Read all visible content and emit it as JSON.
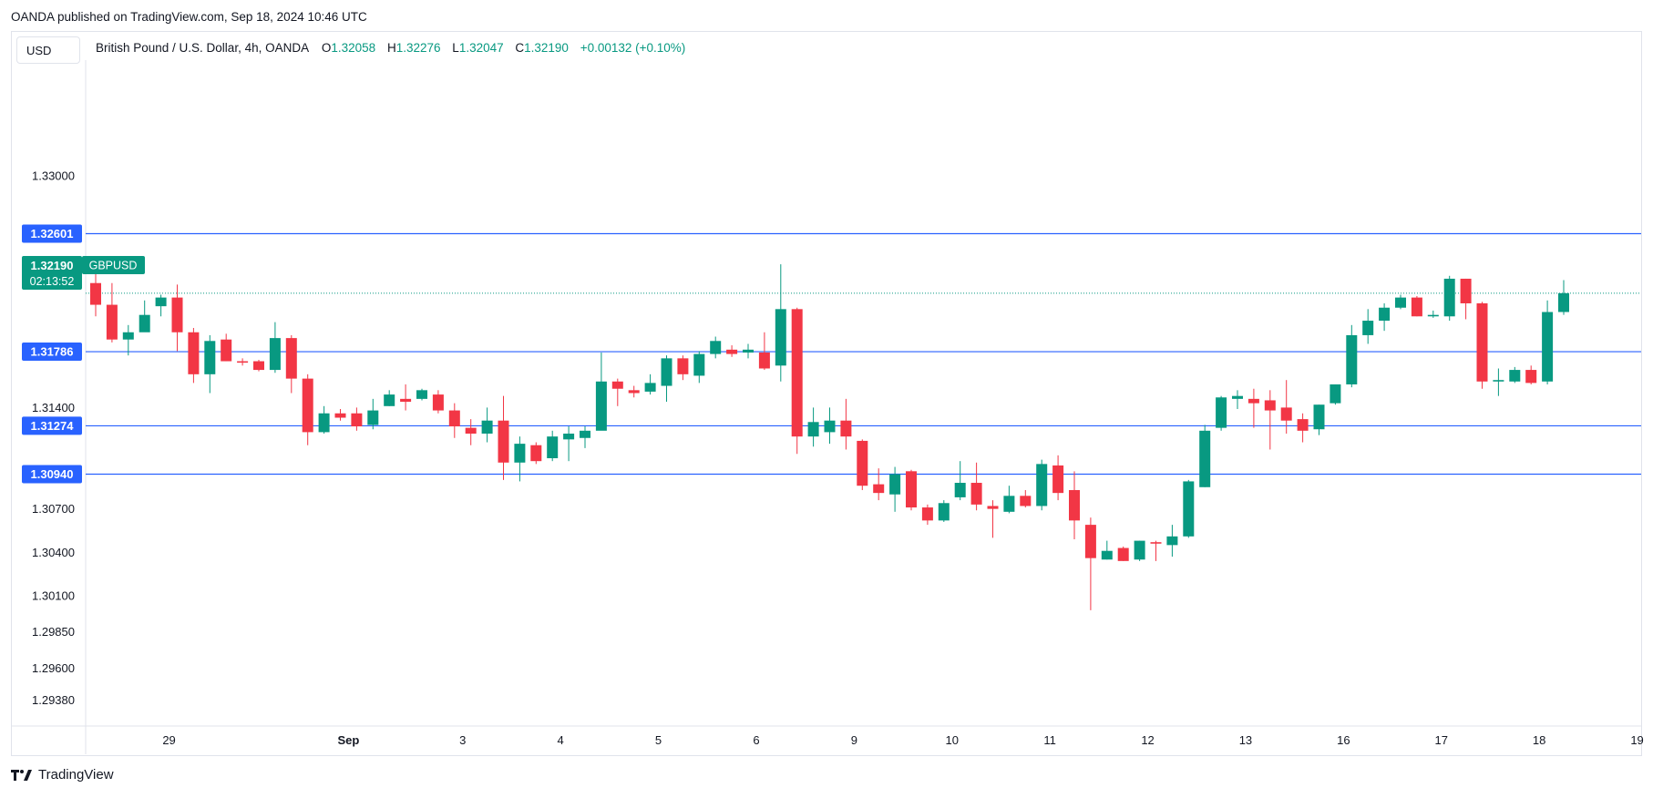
{
  "header": {
    "published": "OANDA published on TradingView.com, Sep 18, 2024 10:46 UTC"
  },
  "currency_button": "USD",
  "legend": {
    "symbol": "British Pound / U.S. Dollar, 4h, OANDA",
    "open_label": "O",
    "open": "1.32058",
    "high_label": "H",
    "high": "1.32276",
    "low_label": "L",
    "low": "1.32047",
    "close_label": "C",
    "close": "1.32190",
    "change": "+0.00132 (+0.10%)"
  },
  "price_tag": {
    "price": "1.32190",
    "countdown": "02:13:52",
    "symbol": "GBPUSD"
  },
  "footer": {
    "brand": "TradingView"
  },
  "colors": {
    "up": "#089981",
    "down": "#f23645",
    "level_line": "#2962ff",
    "axis_text": "#131722"
  },
  "chart_data": {
    "type": "candlestick",
    "symbol": "GBPUSD",
    "timeframe": "4h",
    "ylim": [
      1.292,
      1.338
    ],
    "y_ticks": [
      "1.33000",
      "1.31400",
      "1.30700",
      "1.30400",
      "1.30100",
      "1.29850",
      "1.29600",
      "1.29380"
    ],
    "x_ticks": [
      {
        "label": "29",
        "candle": 4.5
      },
      {
        "label": "Sep",
        "candle": 15.5,
        "bold": true
      },
      {
        "label": "3",
        "candle": 22.5
      },
      {
        "label": "4",
        "candle": 28.5
      },
      {
        "label": "5",
        "candle": 34.5
      },
      {
        "label": "6",
        "candle": 40.5
      },
      {
        "label": "9",
        "candle": 46.5
      },
      {
        "label": "10",
        "candle": 52.5
      },
      {
        "label": "11",
        "candle": 58.5
      },
      {
        "label": "12",
        "candle": 64.5
      },
      {
        "label": "13",
        "candle": 70.5
      },
      {
        "label": "16",
        "candle": 76.5
      },
      {
        "label": "17",
        "candle": 82.5
      },
      {
        "label": "18",
        "candle": 88.5
      },
      {
        "label": "19",
        "candle": 94.5
      }
    ],
    "horizontal_levels": [
      "1.32601",
      "1.31786",
      "1.31274",
      "1.30940"
    ],
    "last_price": 1.3219,
    "candles": [
      [
        1.3226,
        1.3211,
        1.3236,
        1.3203
      ],
      [
        1.3211,
        1.3187,
        1.3226,
        1.3185
      ],
      [
        1.3187,
        1.3192,
        1.3197,
        1.3176
      ],
      [
        1.3192,
        1.3204,
        1.3214,
        1.3195
      ],
      [
        1.321,
        1.3216,
        1.3218,
        1.3203
      ],
      [
        1.3216,
        1.3192,
        1.3225,
        1.3179
      ],
      [
        1.3192,
        1.3163,
        1.3195,
        1.3157
      ],
      [
        1.3163,
        1.3186,
        1.319,
        1.315
      ],
      [
        1.3187,
        1.3172,
        1.3191,
        1.3172
      ],
      [
        1.3172,
        1.3171,
        1.3174,
        1.3169
      ],
      [
        1.3172,
        1.3166,
        1.3173,
        1.3165
      ],
      [
        1.3166,
        1.3188,
        1.3199,
        1.3164
      ],
      [
        1.3188,
        1.316,
        1.319,
        1.315
      ],
      [
        1.316,
        1.3123,
        1.3163,
        1.3114
      ],
      [
        1.3123,
        1.3136,
        1.3141,
        1.3122
      ],
      [
        1.3136,
        1.3133,
        1.3139,
        1.3131
      ],
      [
        1.3136,
        1.3127,
        1.314,
        1.3124
      ],
      [
        1.3128,
        1.3138,
        1.3146,
        1.3125
      ],
      [
        1.3141,
        1.3149,
        1.3152,
        1.3141
      ],
      [
        1.3146,
        1.3144,
        1.3156,
        1.3138
      ],
      [
        1.3146,
        1.3152,
        1.3153,
        1.3145
      ],
      [
        1.3149,
        1.3138,
        1.3152,
        1.3136
      ],
      [
        1.3138,
        1.3127,
        1.3143,
        1.3119
      ],
      [
        1.3126,
        1.3122,
        1.3132,
        1.3114
      ],
      [
        1.3122,
        1.3131,
        1.314,
        1.3116
      ],
      [
        1.3131,
        1.3102,
        1.3148,
        1.309
      ],
      [
        1.3102,
        1.3115,
        1.312,
        1.3089
      ],
      [
        1.3114,
        1.3103,
        1.3116,
        1.3101
      ],
      [
        1.3105,
        1.312,
        1.3124,
        1.3103
      ],
      [
        1.3118,
        1.3122,
        1.3127,
        1.3103
      ],
      [
        1.3119,
        1.3124,
        1.3127,
        1.3112
      ],
      [
        1.3124,
        1.3158,
        1.3178,
        1.3128
      ],
      [
        1.3158,
        1.3153,
        1.316,
        1.3141
      ],
      [
        1.3152,
        1.315,
        1.3155,
        1.3147
      ],
      [
        1.3151,
        1.3157,
        1.3163,
        1.3149
      ],
      [
        1.3155,
        1.3174,
        1.3176,
        1.3144
      ],
      [
        1.3174,
        1.3163,
        1.3176,
        1.3159
      ],
      [
        1.3162,
        1.3177,
        1.3179,
        1.3157
      ],
      [
        1.3177,
        1.3186,
        1.3189,
        1.3174
      ],
      [
        1.318,
        1.3177,
        1.3183,
        1.3175
      ],
      [
        1.3178,
        1.318,
        1.3184,
        1.3174
      ],
      [
        1.3178,
        1.3167,
        1.3192,
        1.3166
      ],
      [
        1.3169,
        1.3208,
        1.3239,
        1.3158
      ],
      [
        1.3208,
        1.312,
        1.3209,
        1.3108
      ],
      [
        1.312,
        1.313,
        1.314,
        1.3113
      ],
      [
        1.3123,
        1.3131,
        1.314,
        1.3115
      ],
      [
        1.3131,
        1.312,
        1.3146,
        1.3111
      ],
      [
        1.3117,
        1.3086,
        1.3118,
        1.3083
      ],
      [
        1.3087,
        1.3081,
        1.3098,
        1.3076
      ],
      [
        1.308,
        1.3094,
        1.3099,
        1.3068
      ],
      [
        1.3096,
        1.3071,
        1.3097,
        1.3069
      ],
      [
        1.3071,
        1.3062,
        1.3073,
        1.3059
      ],
      [
        1.3062,
        1.3074,
        1.3076,
        1.3061
      ],
      [
        1.3078,
        1.3088,
        1.3103,
        1.3076
      ],
      [
        1.3088,
        1.3073,
        1.3102,
        1.3069
      ],
      [
        1.3072,
        1.307,
        1.3076,
        1.305
      ],
      [
        1.3068,
        1.3079,
        1.3086,
        1.3067
      ],
      [
        1.3079,
        1.3072,
        1.3083,
        1.3071
      ],
      [
        1.3072,
        1.3101,
        1.3104,
        1.3069
      ],
      [
        1.31,
        1.3081,
        1.3107,
        1.3076
      ],
      [
        1.3083,
        1.3062,
        1.3096,
        1.3049
      ],
      [
        1.3059,
        1.3036,
        1.3064,
        1.3
      ],
      [
        1.3035,
        1.3041,
        1.3048,
        1.3035
      ],
      [
        1.3043,
        1.3034,
        1.3044,
        1.3034
      ],
      [
        1.3035,
        1.3048,
        1.3048,
        1.3034
      ],
      [
        1.3047,
        1.3046,
        1.3048,
        1.3034
      ],
      [
        1.3045,
        1.3051,
        1.3059,
        1.3037
      ],
      [
        1.3051,
        1.3089,
        1.309,
        1.305
      ],
      [
        1.3085,
        1.3124,
        1.3128,
        1.3085
      ],
      [
        1.3126,
        1.3147,
        1.3148,
        1.3124
      ],
      [
        1.3146,
        1.3148,
        1.3152,
        1.3139
      ],
      [
        1.3146,
        1.3143,
        1.3153,
        1.3126
      ],
      [
        1.3145,
        1.3138,
        1.3152,
        1.3111
      ],
      [
        1.314,
        1.3131,
        1.3159,
        1.3122
      ],
      [
        1.3132,
        1.3124,
        1.3136,
        1.3116
      ],
      [
        1.3125,
        1.3142,
        1.3142,
        1.3121
      ],
      [
        1.3143,
        1.3156,
        1.3156,
        1.3142
      ],
      [
        1.3156,
        1.319,
        1.3197,
        1.3154
      ],
      [
        1.319,
        1.32,
        1.3208,
        1.3184
      ],
      [
        1.32,
        1.3209,
        1.3212,
        1.3193
      ],
      [
        1.3209,
        1.3216,
        1.3218,
        1.3208
      ],
      [
        1.3216,
        1.3203,
        1.3217,
        1.3203
      ],
      [
        1.3203,
        1.3204,
        1.3207,
        1.3202
      ],
      [
        1.3203,
        1.3229,
        1.3231,
        1.32
      ],
      [
        1.3229,
        1.3212,
        1.3229,
        1.3201
      ],
      [
        1.3212,
        1.3158,
        1.3213,
        1.3153
      ],
      [
        1.3158,
        1.3159,
        1.3167,
        1.3148
      ],
      [
        1.3158,
        1.3166,
        1.3168,
        1.3157
      ],
      [
        1.3166,
        1.3157,
        1.3169,
        1.3156
      ],
      [
        1.3158,
        1.3206,
        1.3214,
        1.3156
      ],
      [
        1.3206,
        1.3219,
        1.3228,
        1.3204
      ]
    ]
  }
}
